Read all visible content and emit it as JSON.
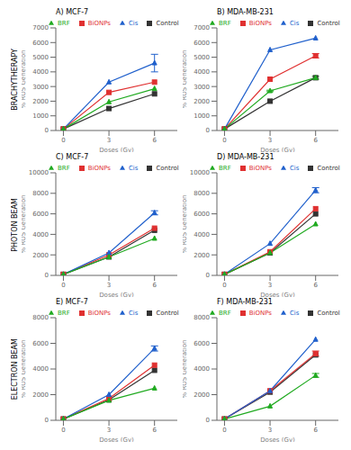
{
  "annotations": [
    "BRACHYTHERAPY",
    "PHOTON BEAM",
    "ELECTRON BEAM"
  ],
  "chart_data": [
    {
      "type": "line",
      "title": "A) MCF-7",
      "xlabel": "Doses (Gy)",
      "ylabel": "% ROS Generation",
      "x": [
        0,
        3,
        6
      ],
      "xlim": [
        -0.5,
        7.5
      ],
      "xticks": [
        0,
        3,
        6
      ],
      "ylim": [
        0,
        7000
      ],
      "yticks": [
        0,
        1000,
        2000,
        3000,
        4000,
        5000,
        6000,
        7000
      ],
      "grid": false,
      "legend": "top",
      "series": [
        {
          "name": "Control",
          "color": "#333333",
          "marker": "square",
          "values": [
            100,
            1500,
            2500
          ],
          "errors": [
            0,
            0,
            0
          ]
        },
        {
          "name": "BiONPs",
          "color": "#e03030",
          "marker": "square",
          "values": [
            100,
            2600,
            3300
          ],
          "errors": [
            0,
            0,
            0
          ]
        },
        {
          "name": "Cis",
          "color": "#2060cc",
          "marker": "triangle",
          "values": [
            100,
            3300,
            4600
          ],
          "errors": [
            0,
            0,
            600
          ]
        },
        {
          "name": "BRF",
          "color": "#20aa20",
          "marker": "triangle",
          "values": [
            100,
            1950,
            2850
          ],
          "errors": [
            0,
            0,
            0
          ]
        }
      ]
    },
    {
      "type": "line",
      "title": "B) MDA-MB-231",
      "xlabel": "Doses (Gy)",
      "ylabel": "% ROS Generation",
      "x": [
        0,
        3,
        6
      ],
      "xlim": [
        -0.5,
        7.5
      ],
      "xticks": [
        0,
        3,
        6
      ],
      "ylim": [
        0,
        7000
      ],
      "yticks": [
        0,
        1000,
        2000,
        3000,
        4000,
        5000,
        6000,
        7000
      ],
      "grid": false,
      "legend": "top",
      "series": [
        {
          "name": "Control",
          "color": "#333333",
          "marker": "square",
          "values": [
            100,
            2000,
            3600
          ],
          "errors": [
            0,
            0,
            0
          ]
        },
        {
          "name": "BiONPs",
          "color": "#e03030",
          "marker": "square",
          "values": [
            100,
            3500,
            5100
          ],
          "errors": [
            0,
            0,
            150
          ]
        },
        {
          "name": "Cis",
          "color": "#2060cc",
          "marker": "triangle",
          "values": [
            100,
            5500,
            6300
          ],
          "errors": [
            0,
            0,
            0
          ]
        },
        {
          "name": "BRF",
          "color": "#20aa20",
          "marker": "triangle",
          "values": [
            100,
            2700,
            3600
          ],
          "errors": [
            0,
            50,
            100
          ]
        }
      ]
    },
    {
      "type": "line",
      "title": "C) MCF-7",
      "xlabel": "Doses (Gy)",
      "ylabel": "% ROS Generation",
      "x": [
        0,
        3,
        6
      ],
      "xlim": [
        -0.5,
        7.5
      ],
      "xticks": [
        0,
        3,
        6
      ],
      "ylim": [
        0,
        10000
      ],
      "yticks": [
        0,
        2000,
        4000,
        6000,
        8000,
        10000
      ],
      "grid": false,
      "legend": "top",
      "series": [
        {
          "name": "Control",
          "color": "#333333",
          "marker": "square",
          "values": [
            100,
            1800,
            4400
          ],
          "errors": [
            0,
            0,
            0
          ]
        },
        {
          "name": "BiONPs",
          "color": "#e03030",
          "marker": "square",
          "values": [
            100,
            2000,
            4600
          ],
          "errors": [
            0,
            0,
            0
          ]
        },
        {
          "name": "Cis",
          "color": "#2060cc",
          "marker": "triangle",
          "values": [
            100,
            2200,
            6100
          ],
          "errors": [
            0,
            0,
            200
          ]
        },
        {
          "name": "BRF",
          "color": "#20aa20",
          "marker": "triangle",
          "values": [
            100,
            1800,
            3600
          ],
          "errors": [
            0,
            0,
            0
          ]
        }
      ]
    },
    {
      "type": "line",
      "title": "D) MDA-MB-231",
      "xlabel": "Doses (Gy)",
      "ylabel": "% ROS Generation",
      "x": [
        0,
        3,
        6
      ],
      "xlim": [
        -0.5,
        7.5
      ],
      "xticks": [
        0,
        3,
        6
      ],
      "ylim": [
        0,
        10000
      ],
      "yticks": [
        0,
        2000,
        4000,
        6000,
        8000,
        10000
      ],
      "grid": false,
      "legend": "top",
      "series": [
        {
          "name": "Control",
          "color": "#333333",
          "marker": "square",
          "values": [
            100,
            2200,
            6000
          ],
          "errors": [
            0,
            0,
            0
          ]
        },
        {
          "name": "BiONPs",
          "color": "#e03030",
          "marker": "square",
          "values": [
            100,
            2300,
            6500
          ],
          "errors": [
            0,
            0,
            0
          ]
        },
        {
          "name": "Cis",
          "color": "#2060cc",
          "marker": "triangle",
          "values": [
            100,
            3100,
            8300
          ],
          "errors": [
            0,
            0,
            250
          ]
        },
        {
          "name": "BRF",
          "color": "#20aa20",
          "marker": "triangle",
          "values": [
            100,
            2200,
            5000
          ],
          "errors": [
            0,
            0,
            0
          ]
        }
      ]
    },
    {
      "type": "line",
      "title": "E) MCF-7",
      "xlabel": "Doses (Gy)",
      "ylabel": "% ROS Generation",
      "x": [
        0,
        3,
        6
      ],
      "xlim": [
        -0.5,
        7.5
      ],
      "xticks": [
        0,
        3,
        6
      ],
      "ylim": [
        0,
        8000
      ],
      "yticks": [
        0,
        2000,
        4000,
        6000,
        8000
      ],
      "grid": false,
      "legend": "top",
      "series": [
        {
          "name": "Control",
          "color": "#333333",
          "marker": "square",
          "values": [
            100,
            1600,
            3900
          ],
          "errors": [
            0,
            0,
            0
          ]
        },
        {
          "name": "BiONPs",
          "color": "#e03030",
          "marker": "square",
          "values": [
            100,
            1700,
            4300
          ],
          "errors": [
            0,
            0,
            0
          ]
        },
        {
          "name": "Cis",
          "color": "#2060cc",
          "marker": "triangle",
          "values": [
            100,
            2000,
            5600
          ],
          "errors": [
            0,
            0,
            200
          ]
        },
        {
          "name": "BRF",
          "color": "#20aa20",
          "marker": "triangle",
          "values": [
            100,
            1550,
            2500
          ],
          "errors": [
            0,
            0,
            0
          ]
        }
      ]
    },
    {
      "type": "line",
      "title": "F) MDA-MB-231",
      "xlabel": "Doses (Gy)",
      "ylabel": "% ROS Generation",
      "x": [
        0,
        3,
        6
      ],
      "xlim": [
        -0.5,
        7.5
      ],
      "xticks": [
        0,
        3,
        6
      ],
      "ylim": [
        0,
        8000
      ],
      "yticks": [
        0,
        2000,
        4000,
        6000,
        8000
      ],
      "grid": false,
      "legend": "top",
      "series": [
        {
          "name": "Control",
          "color": "#333333",
          "marker": "square",
          "values": [
            100,
            2200,
            5100
          ],
          "errors": [
            0,
            0,
            0
          ]
        },
        {
          "name": "BiONPs",
          "color": "#e03030",
          "marker": "square",
          "values": [
            100,
            2300,
            5200
          ],
          "errors": [
            0,
            0,
            200
          ]
        },
        {
          "name": "Cis",
          "color": "#2060cc",
          "marker": "triangle",
          "values": [
            100,
            2300,
            6300
          ],
          "errors": [
            0,
            0,
            0
          ]
        },
        {
          "name": "BRF",
          "color": "#20aa20",
          "marker": "triangle",
          "values": [
            100,
            1100,
            3500
          ],
          "errors": [
            0,
            0,
            150
          ]
        }
      ]
    }
  ]
}
